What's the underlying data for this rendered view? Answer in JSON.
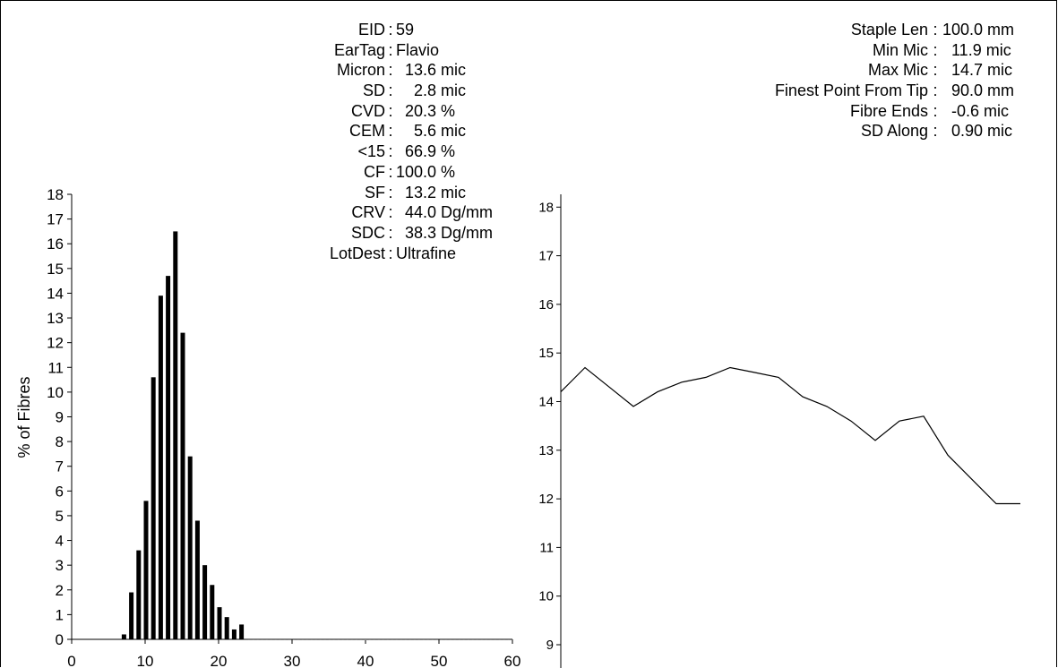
{
  "left_stats": [
    {
      "label": "EID",
      "sep": ":",
      "value": "59"
    },
    {
      "label": "EarTag",
      "sep": ":",
      "value": "Flavio"
    },
    {
      "label": "Micron",
      "sep": ":",
      "value": "  13.6 mic"
    },
    {
      "label": "SD",
      "sep": ":",
      "value": "    2.8 mic"
    },
    {
      "label": "CVD",
      "sep": ":",
      "value": "  20.3 %"
    },
    {
      "label": "CEM",
      "sep": ":",
      "value": "    5.6 mic"
    },
    {
      "label": "<15",
      "sep": ":",
      "value": "  66.9 %"
    },
    {
      "label": "CF",
      "sep": ":",
      "value": "100.0 %"
    },
    {
      "label": "SF",
      "sep": ":",
      "value": "  13.2 mic"
    },
    {
      "label": "CRV",
      "sep": ":",
      "value": "  44.0 Dg/mm"
    },
    {
      "label": "SDC",
      "sep": ":",
      "value": "  38.3 Dg/mm"
    },
    {
      "label": "LotDest",
      "sep": ":",
      "value": "Ultrafine"
    }
  ],
  "right_stats": [
    {
      "label": "Staple Len",
      "sep": ":",
      "value": "100.0 mm"
    },
    {
      "label": "Min Mic",
      "sep": ":",
      "value": "  11.9 mic"
    },
    {
      "label": "Max Mic",
      "sep": ":",
      "value": "  14.7 mic"
    },
    {
      "label": "Finest Point From Tip",
      "sep": ":",
      "value": "  90.0 mm"
    },
    {
      "label": "Fibre Ends",
      "sep": ":",
      "value": "  -0.6 mic"
    },
    {
      "label": "SD Along",
      "sep": ":",
      "value": "  0.90 mic"
    }
  ],
  "chart_data": [
    {
      "type": "bar",
      "ylabel": "% of Fibres",
      "xlabel": "",
      "xlim": [
        0,
        60
      ],
      "ylim": [
        0,
        18
      ],
      "xticks": [
        "0",
        "10",
        "20",
        "30",
        "40",
        "50",
        "60"
      ],
      "yticks": [
        "0",
        "1",
        "2",
        "3",
        "4",
        "5",
        "6",
        "7",
        "8",
        "9",
        "10",
        "11",
        "12",
        "13",
        "14",
        "15",
        "16",
        "17",
        "18"
      ],
      "x": [
        7,
        8,
        9,
        10,
        11,
        12,
        13,
        14,
        15,
        16,
        17,
        18,
        19,
        20,
        21,
        22,
        23
      ],
      "values": [
        0.2,
        1.9,
        3.6,
        5.6,
        10.6,
        13.9,
        14.7,
        16.5,
        12.4,
        7.4,
        4.8,
        3.0,
        2.2,
        1.3,
        0.9,
        0.4,
        0.6
      ],
      "grid": false
    },
    {
      "type": "line",
      "xlabel": "",
      "ylabel": "",
      "ylim": [
        9,
        18.3
      ],
      "yticks": [
        "9",
        "10",
        "11",
        "12",
        "13",
        "14",
        "15",
        "16",
        "17",
        "18"
      ],
      "x": [
        0,
        1,
        2,
        3,
        4,
        5,
        6,
        7,
        8,
        9,
        10,
        11,
        12,
        13,
        14,
        15,
        16,
        17,
        18,
        19
      ],
      "values": [
        14.2,
        14.7,
        14.3,
        13.9,
        14.2,
        14.4,
        14.5,
        14.7,
        14.6,
        14.5,
        14.1,
        13.9,
        13.6,
        13.2,
        13.6,
        13.7,
        12.9,
        12.4,
        11.9,
        11.9
      ],
      "grid": false
    }
  ]
}
